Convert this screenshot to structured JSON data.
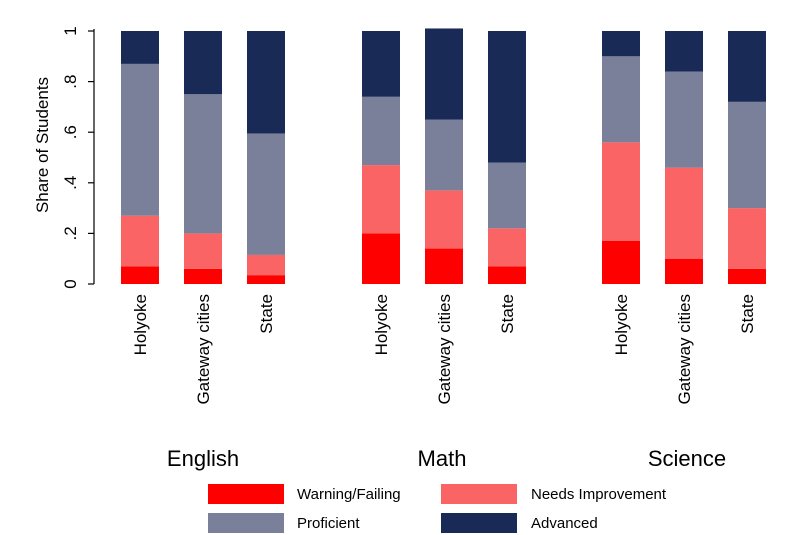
{
  "chart_data": {
    "type": "bar",
    "stacked": true,
    "ylabel": "Share of Students",
    "ylim": [
      0,
      1
    ],
    "yticks": [
      {
        "value": 0,
        "label": "0"
      },
      {
        "value": 0.2,
        "label": ".2"
      },
      {
        "value": 0.4,
        "label": ".4"
      },
      {
        "value": 0.6,
        "label": ".6"
      },
      {
        "value": 0.8,
        "label": ".8"
      },
      {
        "value": 1,
        "label": "1"
      }
    ],
    "groups": [
      "English",
      "Math",
      "Science"
    ],
    "categories": [
      "Holyoke",
      "Gateway cities",
      "State"
    ],
    "series": [
      {
        "name": "Warning/Failing",
        "color": "#ff0000",
        "values": [
          [
            0.07,
            0.06,
            0.035
          ],
          [
            0.2,
            0.14,
            0.07
          ],
          [
            0.17,
            0.1,
            0.06
          ]
        ]
      },
      {
        "name": "Needs Improvement",
        "color": "#fa6464",
        "values": [
          [
            0.2,
            0.14,
            0.08
          ],
          [
            0.27,
            0.23,
            0.15
          ],
          [
            0.39,
            0.36,
            0.24
          ]
        ]
      },
      {
        "name": "Proficient",
        "color": "#7a7f9a",
        "values": [
          [
            0.6,
            0.55,
            0.48
          ],
          [
            0.27,
            0.28,
            0.26
          ],
          [
            0.34,
            0.38,
            0.42
          ]
        ]
      },
      {
        "name": "Advanced",
        "color": "#1a2a57",
        "values": [
          [
            0.13,
            0.25,
            0.405
          ],
          [
            0.26,
            0.36,
            0.52
          ],
          [
            0.1,
            0.16,
            0.28
          ]
        ]
      }
    ],
    "legend_position": "bottom",
    "grid": false
  }
}
